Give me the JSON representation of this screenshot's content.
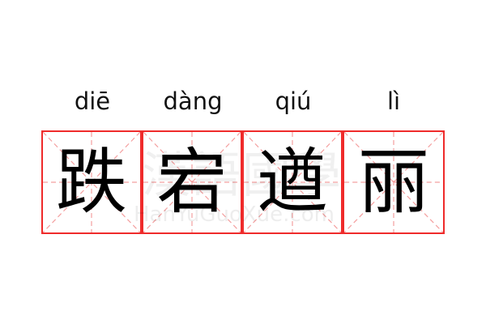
{
  "words": [
    {
      "pinyin": "diē",
      "char": "跌"
    },
    {
      "pinyin": "dàng",
      "char": "宕"
    },
    {
      "pinyin": "qiú",
      "char": "遒"
    },
    {
      "pinyin": "lì",
      "char": "丽"
    }
  ],
  "watermark": {
    "chinese": "漢語國學",
    "latin": "HanYuGuoXue.com"
  },
  "colors": {
    "grid_border": "#ef2b2b",
    "guide_lines": "#f4a0a0"
  }
}
